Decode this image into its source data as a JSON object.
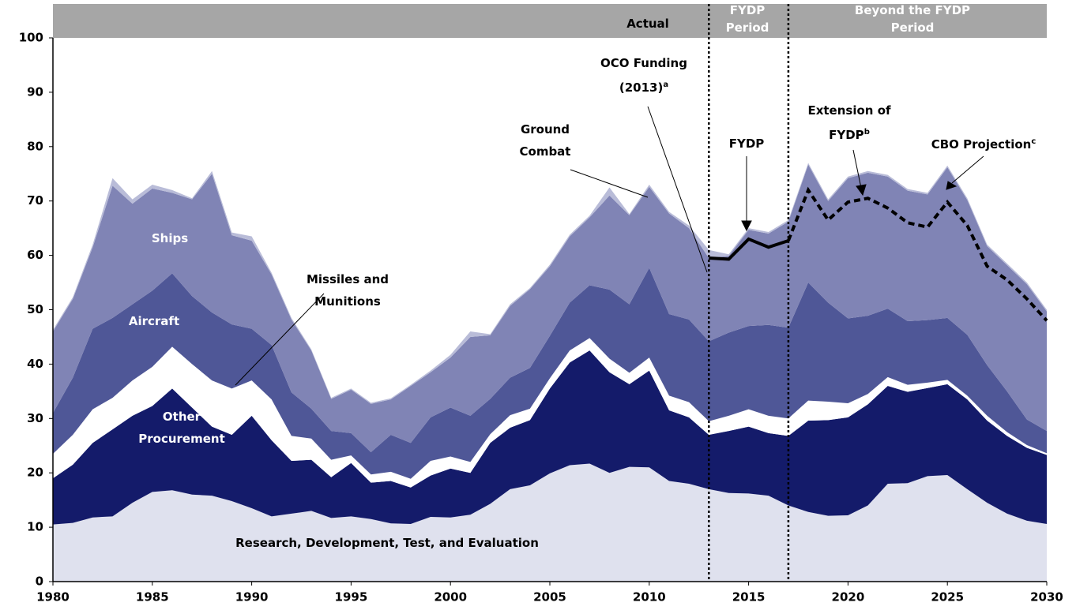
{
  "chart_data": {
    "type": "stacked-area",
    "header": [
      "Actual",
      "FYDP Period",
      "Beyond the FYDP Period"
    ],
    "period_bounds": [
      2013,
      2017
    ],
    "x": [
      1980,
      1981,
      1982,
      1983,
      1984,
      1985,
      1986,
      1987,
      1988,
      1989,
      1990,
      1991,
      1992,
      1993,
      1994,
      1995,
      1996,
      1997,
      1998,
      1999,
      2000,
      2001,
      2002,
      2003,
      2004,
      2005,
      2006,
      2007,
      2008,
      2009,
      2010,
      2011,
      2012,
      2013,
      2014,
      2015,
      2016,
      2017,
      2018,
      2019,
      2020,
      2021,
      2022,
      2023,
      2024,
      2025,
      2026,
      2027,
      2028,
      2029,
      2030
    ],
    "series": [
      {
        "name": "Research, Development, Test, and Evaluation",
        "color": "#dfe1ee",
        "values": [
          10.5,
          10.8,
          11.8,
          12,
          14.5,
          16.5,
          16.8,
          16,
          15.8,
          14.8,
          13.5,
          12,
          12.5,
          13,
          11.7,
          12,
          11.5,
          10.7,
          10.6,
          11.9,
          11.8,
          12.3,
          14.3,
          17,
          17.7,
          19.9,
          21.4,
          21.7,
          20,
          21.1,
          21,
          18.5,
          18,
          17,
          16.3,
          16.2,
          15.8,
          14,
          12.8,
          12.1,
          12.2,
          14,
          18,
          18.1,
          19.4,
          19.6,
          17,
          14.5,
          12.5,
          11.2,
          10.6
        ]
      },
      {
        "name": "Other Procurement",
        "color": "#141b6a",
        "values": [
          8.5,
          10.7,
          13.7,
          16,
          16,
          15.8,
          18.7,
          16,
          12.7,
          12.2,
          17,
          14,
          9.7,
          9.4,
          7.5,
          9.8,
          6.7,
          7.8,
          6.7,
          7.6,
          9,
          7.7,
          11.2,
          11.3,
          12,
          15.6,
          18.9,
          20.8,
          18.5,
          15.2,
          17.8,
          13,
          12.2,
          10,
          11.4,
          12.3,
          11.5,
          12.8,
          16.8,
          17.6,
          18,
          18.6,
          18,
          16.8,
          16.2,
          16.7,
          16.5,
          15.1,
          14.3,
          13.4,
          12.7
        ]
      },
      {
        "name": "Missiles and Munitions",
        "color": "#ffffff",
        "values": [
          4.5,
          5.5,
          6.2,
          5.8,
          6.5,
          7.2,
          7.7,
          8,
          8.5,
          8.5,
          6.5,
          7.5,
          4.6,
          3.9,
          3.2,
          1.4,
          1.5,
          1.7,
          1.6,
          2.7,
          2.2,
          2,
          1.6,
          2.3,
          2.1,
          1.9,
          2.2,
          2.3,
          2.5,
          2.1,
          2.4,
          2.7,
          2.8,
          2.5,
          2.8,
          3.2,
          3.2,
          3.2,
          3.7,
          3.4,
          2.6,
          1.9,
          1.6,
          1.3,
          1,
          0.8,
          0.7,
          0.9,
          0.7,
          0.5,
          0.3
        ]
      },
      {
        "name": "Aircraft",
        "color": "#4f5797",
        "values": [
          7.5,
          10.5,
          14.8,
          14.7,
          14,
          14,
          13.5,
          12.5,
          12.5,
          11.8,
          9.5,
          10,
          8,
          5.5,
          5.3,
          4.1,
          4.1,
          6.8,
          6.6,
          8,
          9,
          8.5,
          6.5,
          6.9,
          7.5,
          7.8,
          8.8,
          9.7,
          12.7,
          12.6,
          16.5,
          15,
          15.2,
          14.7,
          15.3,
          15.3,
          16.7,
          16.7,
          21.7,
          18.2,
          15.6,
          14.4,
          12.6,
          11.7,
          11.5,
          11.4,
          11.2,
          9.3,
          7.5,
          4.7,
          4.1
        ]
      },
      {
        "name": "Ships",
        "color": "#8084b5",
        "values": [
          15,
          14.5,
          15,
          24.3,
          18.5,
          18.8,
          14.8,
          17.8,
          25.5,
          16.4,
          16.2,
          13,
          13.4,
          10.7,
          5.9,
          8,
          8.9,
          6.5,
          10.5,
          8.3,
          9.2,
          14.5,
          11.7,
          13.2,
          14.5,
          12.8,
          12.2,
          12.5,
          17.3,
          16.4,
          14.9,
          18.5,
          16.8,
          15.3,
          14.1,
          17.7,
          16.8,
          19.5,
          21.7,
          18.7,
          25.8,
          26.3,
          24.3,
          24,
          23.1,
          27.7,
          24.8,
          21.9,
          23.2,
          24.9,
          22
        ]
      },
      {
        "name": "Ground Combat",
        "color": "#b9bcd8",
        "values": [
          0.3,
          0.3,
          0.5,
          1.4,
          0.8,
          0.7,
          0.5,
          0.2,
          0.5,
          0.5,
          0.8,
          0.3,
          0.3,
          0.2,
          0.2,
          0.2,
          0.2,
          0.2,
          0.2,
          0.3,
          0.5,
          1,
          0.2,
          0.3,
          0.2,
          0.3,
          0.3,
          0.3,
          1.5,
          0.2,
          0.4,
          0.3,
          0.5,
          1.5,
          0.3,
          0.3,
          0.3,
          0.3,
          0.3,
          0.3,
          0.3,
          0.3,
          0.3,
          0.3,
          0.3,
          0.3,
          0.3,
          0.3,
          0.3,
          0.3,
          0.3
        ]
      }
    ],
    "lines": [
      {
        "name": "FYDP",
        "color": "#000000",
        "dashed": false,
        "x": [
          2013,
          2014,
          2015,
          2016,
          2017
        ],
        "values": [
          59.5,
          59.3,
          63,
          61.5,
          62.7
        ]
      },
      {
        "name": "Extension of FYDP",
        "color": "#000000",
        "dashed": true,
        "x": [
          2017,
          2018,
          2019,
          2020,
          2021,
          2022,
          2023,
          2024,
          2025,
          2026,
          2027,
          2028,
          2029,
          2030
        ],
        "values": [
          62.7,
          72,
          66.5,
          69.8,
          70.5,
          68.7,
          66,
          65.2,
          69.8,
          65.5,
          58,
          55.5,
          52,
          48
        ]
      }
    ],
    "annotations": [
      {
        "text": "OCO Funding (2013)",
        "sup": "a"
      },
      {
        "text": "Extension of FYDP",
        "sup": "b"
      },
      {
        "text": "CBO Projection",
        "sup": "c"
      }
    ],
    "xlim": [
      1980,
      2030
    ],
    "ylim": [
      0,
      100
    ],
    "xticks": [
      1980,
      1985,
      1990,
      1995,
      2000,
      2005,
      2010,
      2015,
      2020,
      2025,
      2030
    ],
    "yticks": [
      0,
      10,
      20,
      30,
      40,
      50,
      60,
      70,
      80,
      90,
      100
    ]
  }
}
